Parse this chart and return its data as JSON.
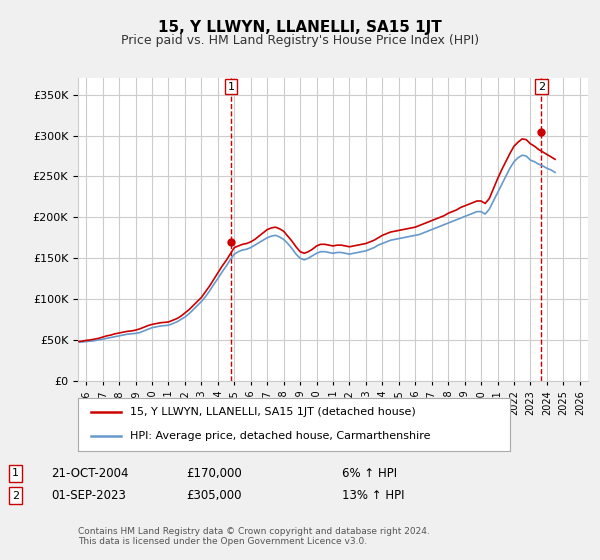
{
  "title": "15, Y LLWYN, LLANELLI, SA15 1JT",
  "subtitle": "Price paid vs. HM Land Registry's House Price Index (HPI)",
  "ylabel_ticks": [
    "£0",
    "£50K",
    "£100K",
    "£150K",
    "£200K",
    "£250K",
    "£300K",
    "£350K"
  ],
  "ytick_values": [
    0,
    50000,
    100000,
    150000,
    200000,
    250000,
    300000,
    350000
  ],
  "ylim": [
    0,
    370000
  ],
  "xlim_start": 1995.5,
  "xlim_end": 2026.5,
  "legend_label_red": "15, Y LLWYN, LLANELLI, SA15 1JT (detached house)",
  "legend_label_blue": "HPI: Average price, detached house, Carmarthenshire",
  "annotation1_box": "1",
  "annotation1_date": "21-OCT-2004",
  "annotation1_price": "£170,000",
  "annotation1_hpi": "6% ↑ HPI",
  "annotation2_box": "2",
  "annotation2_date": "01-SEP-2023",
  "annotation2_price": "£305,000",
  "annotation2_hpi": "13% ↑ HPI",
  "footnote": "Contains HM Land Registry data © Crown copyright and database right 2024.\nThis data is licensed under the Open Government Licence v3.0.",
  "color_red": "#cc0000",
  "color_blue": "#6699cc",
  "color_dashed": "#cc0000",
  "background_color": "#f0f0f0",
  "plot_bg": "#ffffff",
  "grid_color": "#cccccc",
  "marker1_x": 2004.8,
  "marker1_y": 170000,
  "marker2_x": 2023.67,
  "marker2_y": 305000,
  "hpi_data_x": [
    1995,
    1995.25,
    1995.5,
    1995.75,
    1996,
    1996.25,
    1996.5,
    1996.75,
    1997,
    1997.25,
    1997.5,
    1997.75,
    1998,
    1998.25,
    1998.5,
    1998.75,
    1999,
    1999.25,
    1999.5,
    1999.75,
    2000,
    2000.25,
    2000.5,
    2000.75,
    2001,
    2001.25,
    2001.5,
    2001.75,
    2002,
    2002.25,
    2002.5,
    2002.75,
    2003,
    2003.25,
    2003.5,
    2003.75,
    2004,
    2004.25,
    2004.5,
    2004.75,
    2005,
    2005.25,
    2005.5,
    2005.75,
    2006,
    2006.25,
    2006.5,
    2006.75,
    2007,
    2007.25,
    2007.5,
    2007.75,
    2008,
    2008.25,
    2008.5,
    2008.75,
    2009,
    2009.25,
    2009.5,
    2009.75,
    2010,
    2010.25,
    2010.5,
    2010.75,
    2011,
    2011.25,
    2011.5,
    2011.75,
    2012,
    2012.25,
    2012.5,
    2012.75,
    2013,
    2013.25,
    2013.5,
    2013.75,
    2014,
    2014.25,
    2014.5,
    2014.75,
    2015,
    2015.25,
    2015.5,
    2015.75,
    2016,
    2016.25,
    2016.5,
    2016.75,
    2017,
    2017.25,
    2017.5,
    2017.75,
    2018,
    2018.25,
    2018.5,
    2018.75,
    2019,
    2019.25,
    2019.5,
    2019.75,
    2020,
    2020.25,
    2020.5,
    2020.75,
    2021,
    2021.25,
    2021.5,
    2021.75,
    2022,
    2022.25,
    2022.5,
    2022.75,
    2023,
    2023.25,
    2023.5,
    2023.75,
    2024,
    2024.25,
    2024.5
  ],
  "hpi_data_y": [
    48000,
    47500,
    47000,
    47500,
    48000,
    48500,
    49000,
    50000,
    51000,
    52000,
    53000,
    54000,
    55000,
    56000,
    57000,
    57500,
    58000,
    59000,
    61000,
    63000,
    65000,
    66000,
    67000,
    67500,
    68000,
    70000,
    72000,
    75000,
    78000,
    82000,
    87000,
    92000,
    97000,
    103000,
    110000,
    118000,
    125000,
    133000,
    140000,
    148000,
    155000,
    158000,
    160000,
    161000,
    163000,
    166000,
    169000,
    172000,
    175000,
    177000,
    178000,
    176000,
    173000,
    168000,
    162000,
    155000,
    150000,
    148000,
    150000,
    153000,
    156000,
    158000,
    158000,
    157000,
    156000,
    157000,
    157000,
    156000,
    155000,
    156000,
    157000,
    158000,
    159000,
    161000,
    163000,
    166000,
    168000,
    170000,
    172000,
    173000,
    174000,
    175000,
    176000,
    177000,
    178000,
    179000,
    181000,
    183000,
    185000,
    187000,
    189000,
    191000,
    193000,
    195000,
    197000,
    199000,
    201000,
    203000,
    205000,
    207000,
    207000,
    204000,
    210000,
    220000,
    230000,
    240000,
    250000,
    260000,
    268000,
    273000,
    276000,
    275000,
    270000,
    268000,
    265000,
    263000,
    260000,
    258000,
    255000
  ],
  "price_data_x": [
    1995,
    1995.25,
    1995.5,
    1995.75,
    1996,
    1996.25,
    1996.5,
    1996.75,
    1997,
    1997.25,
    1997.5,
    1997.75,
    1998,
    1998.25,
    1998.5,
    1998.75,
    1999,
    1999.25,
    1999.5,
    1999.75,
    2000,
    2000.25,
    2000.5,
    2000.75,
    2001,
    2001.25,
    2001.5,
    2001.75,
    2002,
    2002.25,
    2002.5,
    2002.75,
    2003,
    2003.25,
    2003.5,
    2003.75,
    2004,
    2004.25,
    2004.5,
    2004.75,
    2005,
    2005.25,
    2005.5,
    2005.75,
    2006,
    2006.25,
    2006.5,
    2006.75,
    2007,
    2007.25,
    2007.5,
    2007.75,
    2008,
    2008.25,
    2008.5,
    2008.75,
    2009,
    2009.25,
    2009.5,
    2009.75,
    2010,
    2010.25,
    2010.5,
    2010.75,
    2011,
    2011.25,
    2011.5,
    2011.75,
    2012,
    2012.25,
    2012.5,
    2012.75,
    2013,
    2013.25,
    2013.5,
    2013.75,
    2014,
    2014.25,
    2014.5,
    2014.75,
    2015,
    2015.25,
    2015.5,
    2015.75,
    2016,
    2016.25,
    2016.5,
    2016.75,
    2017,
    2017.25,
    2017.5,
    2017.75,
    2018,
    2018.25,
    2018.5,
    2018.75,
    2019,
    2019.25,
    2019.5,
    2019.75,
    2020,
    2020.25,
    2020.5,
    2020.75,
    2021,
    2021.25,
    2021.5,
    2021.75,
    2022,
    2022.25,
    2022.5,
    2022.75,
    2023,
    2023.25,
    2023.5,
    2023.75,
    2024,
    2024.25,
    2024.5
  ],
  "price_data_y": [
    49000,
    48500,
    48000,
    48500,
    49500,
    50000,
    51000,
    52000,
    53500,
    55000,
    56000,
    57500,
    58500,
    59500,
    60500,
    61000,
    62000,
    63500,
    65500,
    67500,
    69000,
    70000,
    71000,
    71500,
    72000,
    74000,
    76000,
    79000,
    83000,
    87000,
    92000,
    97000,
    102000,
    109000,
    116000,
    124000,
    132000,
    140000,
    147000,
    155000,
    163000,
    165000,
    167000,
    168000,
    170000,
    173000,
    177000,
    181000,
    185000,
    187000,
    188000,
    186000,
    183000,
    177000,
    171000,
    164000,
    158000,
    156000,
    158000,
    161000,
    165000,
    167000,
    167000,
    166000,
    165000,
    166000,
    166000,
    165000,
    164000,
    165000,
    166000,
    167000,
    168000,
    170000,
    172000,
    175000,
    178000,
    180000,
    182000,
    183000,
    184000,
    185000,
    186000,
    187000,
    188000,
    190000,
    192000,
    194000,
    196000,
    198000,
    200000,
    202000,
    205000,
    207000,
    209000,
    212000,
    214000,
    216000,
    218000,
    220000,
    220000,
    217000,
    223000,
    235000,
    247000,
    258000,
    268000,
    278000,
    287000,
    292000,
    296000,
    295000,
    290000,
    287000,
    283000,
    280000,
    277000,
    274000,
    271000
  ]
}
